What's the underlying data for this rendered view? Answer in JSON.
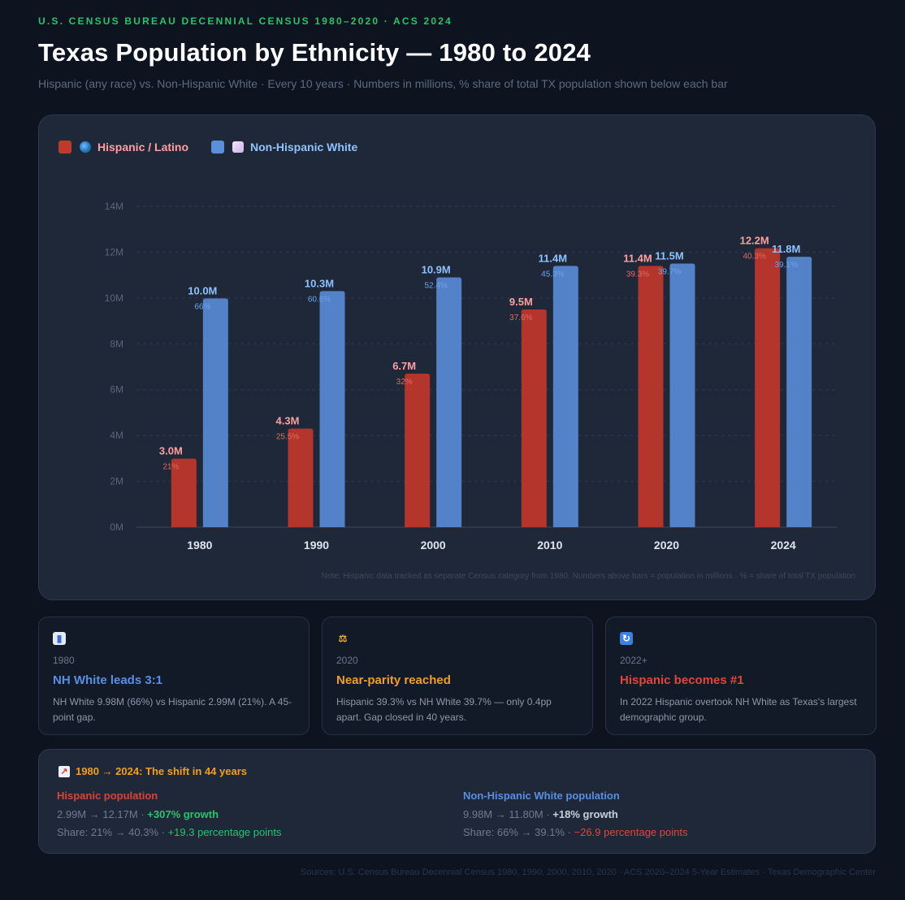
{
  "header": {
    "eyebrow": "U.S. CENSUS BUREAU DECENNIAL CENSUS 1980–2020 · ACS 2024",
    "title": "Texas Population by Ethnicity — 1980 to 2024",
    "subtitle": "Hispanic (any race) vs. Non-Hispanic White · Every 10 years · Numbers in millions, % share of total TX population shown below each bar"
  },
  "legend": {
    "hispanic": "Hispanic / Latino",
    "white": "Non-Hispanic White"
  },
  "colors": {
    "hispanic": "#b3352c",
    "white": "#5482c8",
    "hispanic_label": "#ff9f9f",
    "white_label": "#8fc2ff"
  },
  "chart_data": {
    "type": "bar",
    "categories": [
      "1980",
      "1990",
      "2000",
      "2010",
      "2020",
      "2024"
    ],
    "ylim": [
      0,
      14
    ],
    "y_ticks": [
      "0M",
      "2M",
      "4M",
      "6M",
      "8M",
      "10M",
      "12M",
      "14M"
    ],
    "series": [
      {
        "name": "Hispanic / Latino",
        "values": [
          2.99,
          4.3,
          6.7,
          9.5,
          11.4,
          12.17
        ],
        "value_labels": [
          "3.0M",
          "4.3M",
          "6.7M",
          "9.5M",
          "11.4M",
          "12.2M"
        ],
        "share_labels": [
          "21%",
          "25.5%",
          "32%",
          "37.6%",
          "39.3%",
          "40.3%"
        ]
      },
      {
        "name": "Non-Hispanic White",
        "values": [
          9.98,
          10.3,
          10.9,
          11.4,
          11.5,
          11.8
        ],
        "value_labels": [
          "10.0M",
          "10.3M",
          "10.9M",
          "11.4M",
          "11.5M",
          "11.8M"
        ],
        "share_labels": [
          "66%",
          "60.6%",
          "52.4%",
          "45.3%",
          "39.7%",
          "39.1%"
        ]
      }
    ],
    "grid": true,
    "legend_position": "top-left",
    "note": "Note: Hispanic data tracked as separate Census category from 1980. Numbers above bars = population in millions · % = share of total TX population"
  },
  "cards": [
    {
      "icon": "bar-chart-icon",
      "year": "1980",
      "heading": "NH White leads 3:1",
      "heading_color": "#5a8fe0",
      "text": "NH White 9.98M (66%) vs Hispanic 2.99M (21%). A 45-point gap."
    },
    {
      "icon": "scales-icon",
      "year": "2020",
      "heading": "Near-parity reached",
      "heading_color": "#f0a020",
      "text": "Hispanic 39.3% vs NH White 39.7% — only 0.4pp apart. Gap closed in 40 years."
    },
    {
      "icon": "repeat-icon",
      "year": "2022+",
      "heading": "Hispanic becomes #1",
      "heading_color": "#e2453c",
      "text": "In 2022 Hispanic overtook NH White as Texas's largest demographic group."
    }
  ],
  "shift": {
    "heading": "1980 → 2024: The shift in 44 years",
    "hispanic": {
      "title": "Hispanic population",
      "pop_range": "2.99M → 12.17M",
      "growth": "+307% growth",
      "share_range": "Share: 21% → 40.3%",
      "share_change": "+19.3 percentage points"
    },
    "white": {
      "title": "Non-Hispanic White population",
      "pop_range": "9.98M → 11.80M",
      "growth": "+18% growth",
      "share_range": "Share: 66% → 39.1%",
      "share_change": "−26.9 percentage points"
    }
  },
  "sources": "Sources: U.S. Census Bureau Decennial Census 1980, 1990, 2000, 2010, 2020 · ACS 2020–2024 5-Year Estimates · Texas Demographic Center"
}
